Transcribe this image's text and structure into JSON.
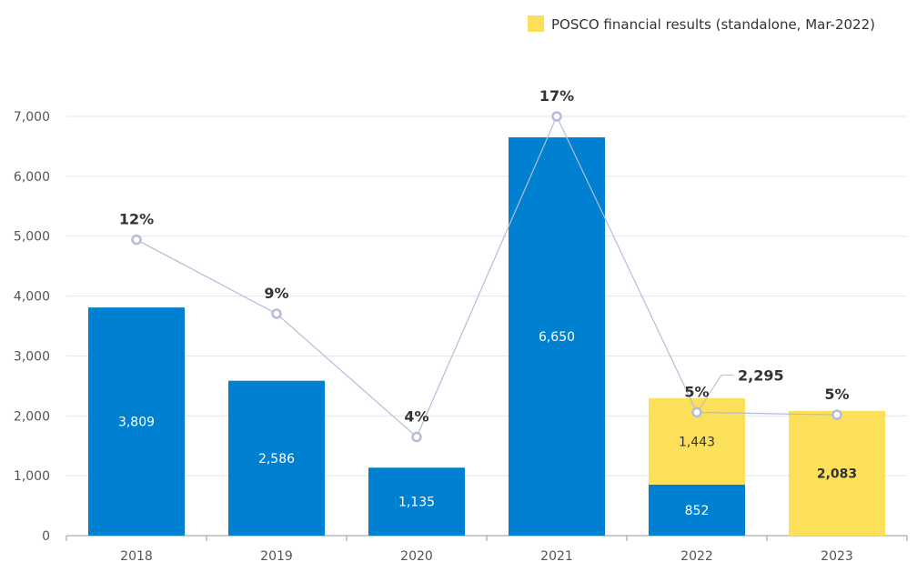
{
  "chart_data": {
    "type": "bar",
    "categories": [
      "2018",
      "2019",
      "2020",
      "2021",
      "2022",
      "2023"
    ],
    "stacked": true,
    "ylim": [
      0,
      7000
    ],
    "yticks": [
      0,
      1000,
      2000,
      3000,
      4000,
      5000,
      6000,
      7000
    ],
    "ytick_labels": [
      "0",
      "1,000",
      "2,000",
      "3,000",
      "4,000",
      "5,000",
      "6,000",
      "7,000"
    ],
    "grid": true,
    "series": [
      {
        "values": [
          3809,
          2586,
          1135,
          6650,
          852,
          null
        ],
        "labels": [
          "3,809",
          "2,586",
          "1,135",
          "6,650",
          "852",
          ""
        ],
        "color": "#0080D0"
      },
      {
        "name": "POSCO financial results (standalone, Mar-2022)",
        "values": [
          null,
          null,
          null,
          null,
          1443,
          2083
        ],
        "labels": [
          "",
          "",
          "",
          "",
          "1,443",
          "2,083"
        ],
        "color": "#FDE05A"
      }
    ],
    "totals": {
      "2022": "2,295"
    },
    "line": {
      "values_pct": [
        12,
        9,
        4,
        17,
        5,
        4.9
      ],
      "labels": [
        "12%",
        "9%",
        "4%",
        "17%",
        "5%",
        "5%"
      ],
      "secondary_axis_hidden": true,
      "secondary_ylim": [
        0,
        17
      ],
      "color": "#B4BCD8"
    },
    "legend": {
      "position": "top-right",
      "label": "POSCO financial results (standalone, Mar-2022)",
      "color": "#FDE05A"
    }
  }
}
